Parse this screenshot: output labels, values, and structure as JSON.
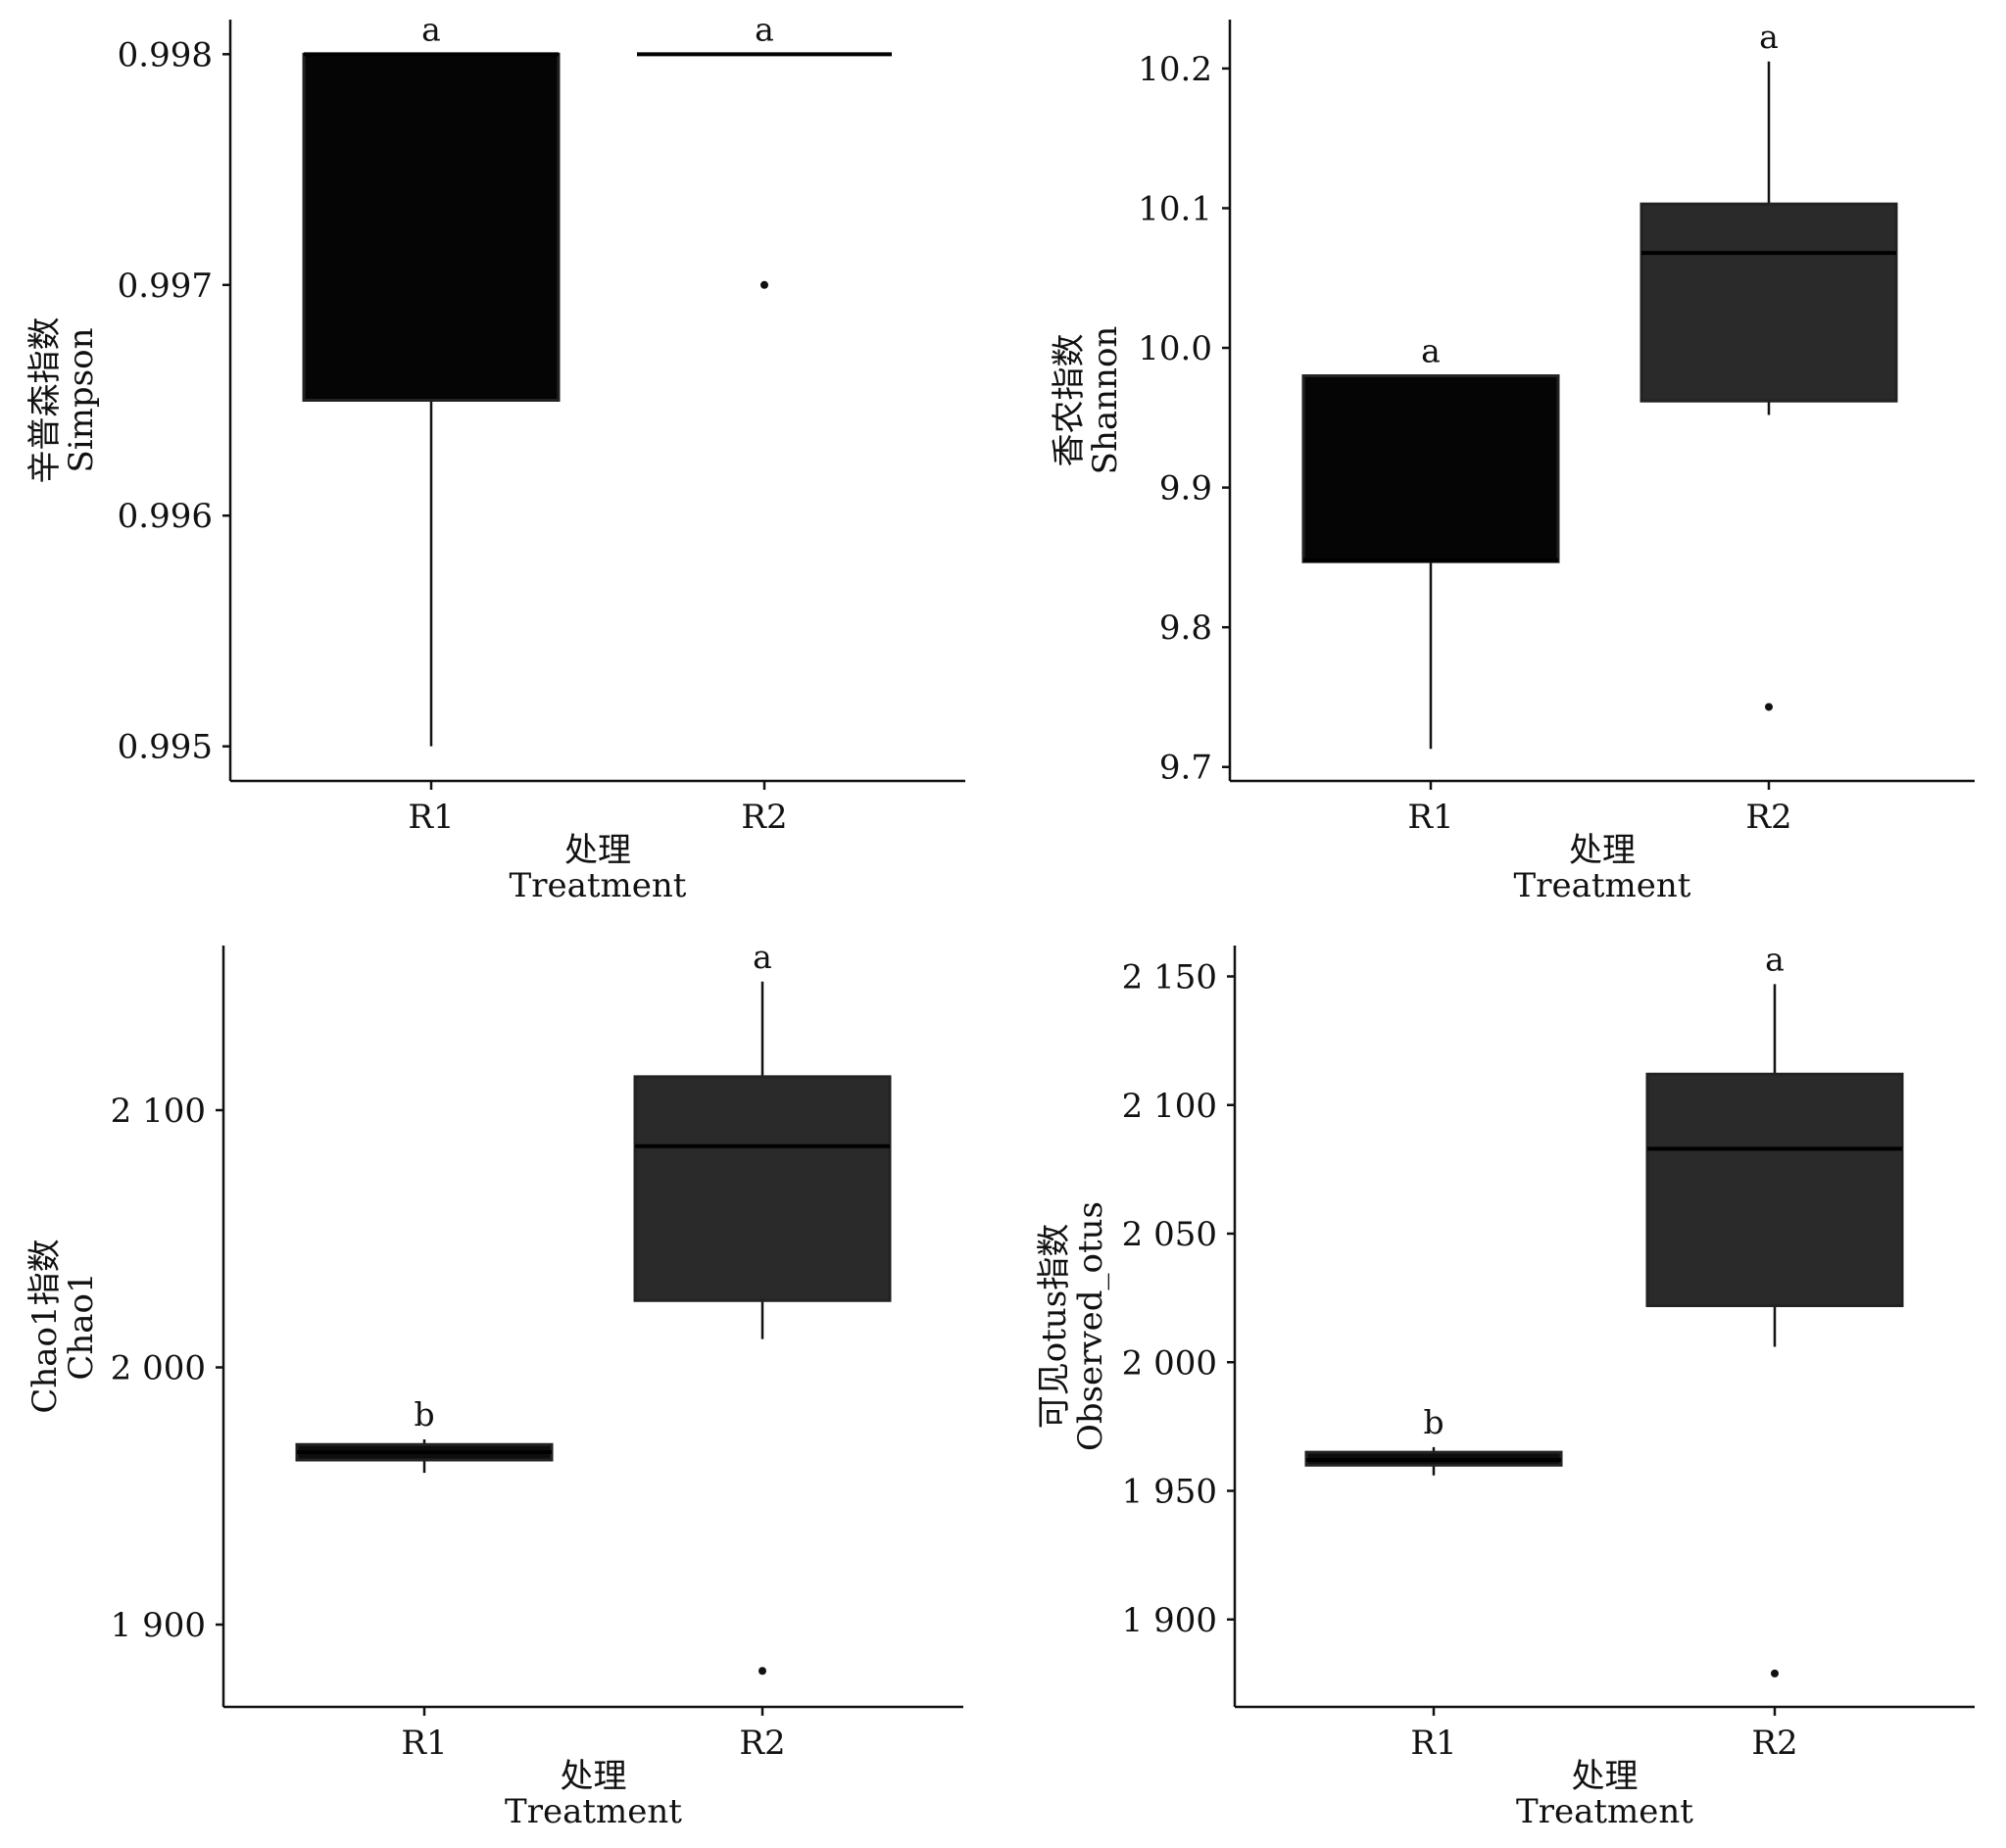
{
  "figure": {
    "x_label_cn": "处理",
    "x_label_en": "Treatment"
  },
  "chart_data": [
    {
      "type": "box",
      "ylabel_cn": "辛普森指数",
      "ylabel_en": "Simpson",
      "categories": [
        "R1",
        "R2"
      ],
      "ylim": [
        0.99485,
        0.99815
      ],
      "yticks": [
        0.995,
        0.996,
        0.997,
        0.998
      ],
      "ytick_labels": [
        "0.995",
        "0.996",
        "0.997",
        "0.998"
      ],
      "grid": false,
      "boxes": [
        {
          "category": "R1",
          "whisker_low": 0.995,
          "q1": 0.9965,
          "median": 0.998,
          "q3": 0.998,
          "whisker_high": 0.998,
          "outliers": [],
          "color": "#050505",
          "significance": "a"
        },
        {
          "category": "R2",
          "whisker_low": 0.998,
          "q1": 0.998,
          "median": 0.998,
          "q3": 0.998,
          "whisker_high": 0.998,
          "outliers": [
            0.997
          ],
          "color": "#050505",
          "significance": "a"
        }
      ]
    },
    {
      "type": "box",
      "ylabel_cn": "香农指数",
      "ylabel_en": "Shannon",
      "categories": [
        "R1",
        "R2"
      ],
      "ylim": [
        9.69,
        10.235
      ],
      "yticks": [
        9.7,
        9.8,
        9.9,
        10.0,
        10.1,
        10.2
      ],
      "ytick_labels": [
        "9.7",
        "9.8",
        "9.9",
        "10.0",
        "10.1",
        "10.2"
      ],
      "grid": false,
      "boxes": [
        {
          "category": "R1",
          "whisker_low": 9.713,
          "q1": 9.847,
          "median": 9.848,
          "q3": 9.98,
          "whisker_high": 9.98,
          "outliers": [],
          "color": "#050505",
          "significance": "a"
        },
        {
          "category": "R2",
          "whisker_low": 9.952,
          "q1": 9.962,
          "median": 10.068,
          "q3": 10.103,
          "whisker_high": 10.205,
          "outliers": [
            9.743
          ],
          "color": "#2a2a2a",
          "significance": "a"
        }
      ]
    },
    {
      "type": "box",
      "ylabel_cn": "Chao1指数",
      "ylabel_en": "Chao1",
      "categories": [
        "R1",
        "R2"
      ],
      "ylim": [
        1868,
        2164
      ],
      "yticks": [
        1900,
        2000,
        2100
      ],
      "ytick_labels": [
        "1 900",
        "2 000",
        "2 100"
      ],
      "grid": false,
      "boxes": [
        {
          "category": "R1",
          "whisker_low": 1959,
          "q1": 1964,
          "median": 1967,
          "q3": 1970,
          "whisker_high": 1972,
          "outliers": [],
          "color": "#0d0d0d",
          "significance": "b"
        },
        {
          "category": "R2",
          "whisker_low": 2011,
          "q1": 2026,
          "median": 2086,
          "q3": 2113,
          "whisker_high": 2150,
          "outliers": [
            1882
          ],
          "color": "#2a2a2a",
          "significance": "a"
        }
      ]
    },
    {
      "type": "box",
      "ylabel_cn": "可见otus指数",
      "ylabel_en": "Observed_otus",
      "categories": [
        "R1",
        "R2"
      ],
      "ylim": [
        1866,
        2162
      ],
      "yticks": [
        1900,
        1950,
        2000,
        2050,
        2100,
        2150
      ],
      "ytick_labels": [
        "1 900",
        "1 950",
        "2 000",
        "2 050",
        "2 100",
        "2 150"
      ],
      "grid": false,
      "boxes": [
        {
          "category": "R1",
          "whisker_low": 1956,
          "q1": 1960,
          "median": 1962,
          "q3": 1965,
          "whisker_high": 1967,
          "outliers": [],
          "color": "#0d0d0d",
          "significance": "b"
        },
        {
          "category": "R2",
          "whisker_low": 2006,
          "q1": 2022,
          "median": 2083,
          "q3": 2112,
          "whisker_high": 2147,
          "outliers": [
            1879
          ],
          "color": "#2a2a2a",
          "significance": "a"
        }
      ]
    }
  ]
}
